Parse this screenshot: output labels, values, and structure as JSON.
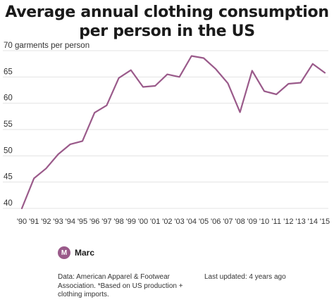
{
  "chart_data": {
    "type": "line",
    "title": "Average annual clothing consumption per person in the US",
    "ylabel": "70 garments per person",
    "x": [
      "'90",
      "'91",
      "'92",
      "'93",
      "'94",
      "'95",
      "'96",
      "'97",
      "'98",
      "'99",
      "'00",
      "'01",
      "'02",
      "'03",
      "'04",
      "'05",
      "'06",
      "'07",
      "'08",
      "'09",
      "'10",
      "'11",
      "'12",
      "'13",
      "'14",
      "'15"
    ],
    "y_tick_labels": [
      "70 garments per person",
      "65",
      "60",
      "55",
      "50",
      "45",
      "40"
    ],
    "y_ticks": [
      70,
      65,
      60,
      55,
      50,
      45,
      40
    ],
    "series": [
      {
        "values": [
          40.0,
          45.7,
          47.6,
          50.3,
          52.2,
          52.8,
          58.2,
          59.6,
          64.8,
          66.3,
          63.1,
          63.3,
          65.5,
          65.0,
          69.0,
          68.6,
          66.5,
          63.8,
          58.3,
          66.2,
          62.3,
          61.7,
          63.7,
          63.9,
          67.5,
          65.8
        ]
      }
    ],
    "ylim": [
      40,
      70
    ],
    "grid": true,
    "line_color": "#9a5a8a",
    "grid_color": "#e3e3e3"
  },
  "author": {
    "initial": "M",
    "name": "Marc"
  },
  "footer": {
    "source": "Data: American Apparel & Footwear Association. *Based on US production + clothing imports.",
    "updated": "Last updated: 4 years ago"
  }
}
